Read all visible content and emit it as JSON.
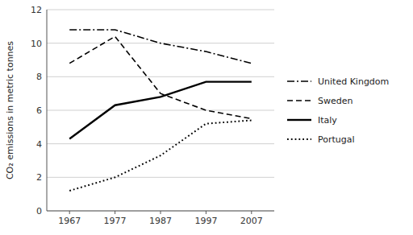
{
  "chart_data": {
    "type": "line",
    "ylabel": "CO₂ emissions in metric tonnes",
    "x": [
      1967,
      1977,
      1987,
      1997,
      2007
    ],
    "xlim": [
      1962,
      2012
    ],
    "xticks": [
      1967,
      1977,
      1987,
      1997,
      2007
    ],
    "ylim": [
      0,
      12
    ],
    "yticks": [
      0,
      2,
      4,
      6,
      8,
      10,
      12
    ],
    "grid": true,
    "legend": "right",
    "series": [
      {
        "name": "United Kingdom",
        "color": "black",
        "line_style": "dashdot",
        "values": [
          10.8,
          10.8,
          10.0,
          9.5,
          8.8
        ]
      },
      {
        "name": "Sweden",
        "color": "black",
        "line_style": "dashed",
        "values": [
          8.8,
          10.4,
          7.0,
          6.0,
          5.5
        ]
      },
      {
        "name": "Italy",
        "color": "black",
        "line_style": "solid",
        "values": [
          4.3,
          6.3,
          6.8,
          7.7,
          7.7
        ]
      },
      {
        "name": "Portugal",
        "color": "black",
        "line_style": "dotted",
        "values": [
          1.2,
          2.0,
          3.3,
          5.2,
          5.4
        ]
      }
    ]
  }
}
